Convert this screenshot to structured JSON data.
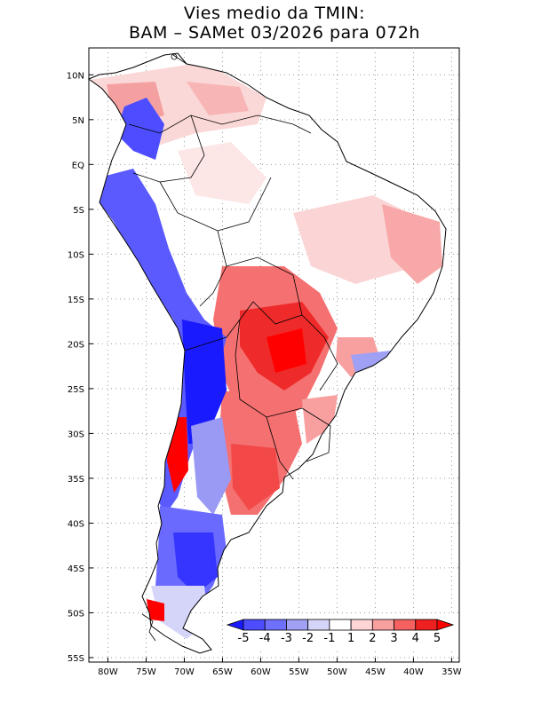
{
  "title": {
    "line1": "Vies medio da TMIN:",
    "line2": "BAM – SAMet 03/2026  para 072h"
  },
  "map": {
    "region": "South America",
    "lat_labels": [
      "10N",
      "5N",
      "EQ",
      "5S",
      "10S",
      "15S",
      "20S",
      "25S",
      "30S",
      "35S",
      "40S",
      "45S",
      "50S",
      "55S"
    ],
    "lon_labels": [
      "80W",
      "75W",
      "70W",
      "65W",
      "60W",
      "55W",
      "50W",
      "45W",
      "40W",
      "35W"
    ],
    "lat_values": [
      10,
      5,
      0,
      -5,
      -10,
      -15,
      -20,
      -25,
      -30,
      -35,
      -40,
      -45,
      -50,
      -55
    ],
    "lon_values": [
      -80,
      -75,
      -70,
      -65,
      -60,
      -55,
      -50,
      -45,
      -40,
      -35
    ],
    "extent": {
      "lon_min": -82.5,
      "lon_max": -34,
      "lat_min": -55.5,
      "lat_max": 13
    }
  },
  "colorbar": {
    "labels": [
      "-5",
      "-4",
      "-3",
      "-2",
      "-1",
      "1",
      "2",
      "3",
      "4",
      "5"
    ],
    "colors": [
      "#1a1aff",
      "#4d4dff",
      "#7070ff",
      "#a0a0f5",
      "#d5d5fa",
      "#ffffff",
      "#fdd5d5",
      "#f8a0a0",
      "#f56060",
      "#ef2020",
      "#ff0000"
    ]
  },
  "colors": {
    "coast": "#000000",
    "border": "#000000",
    "grid": "#999999"
  }
}
